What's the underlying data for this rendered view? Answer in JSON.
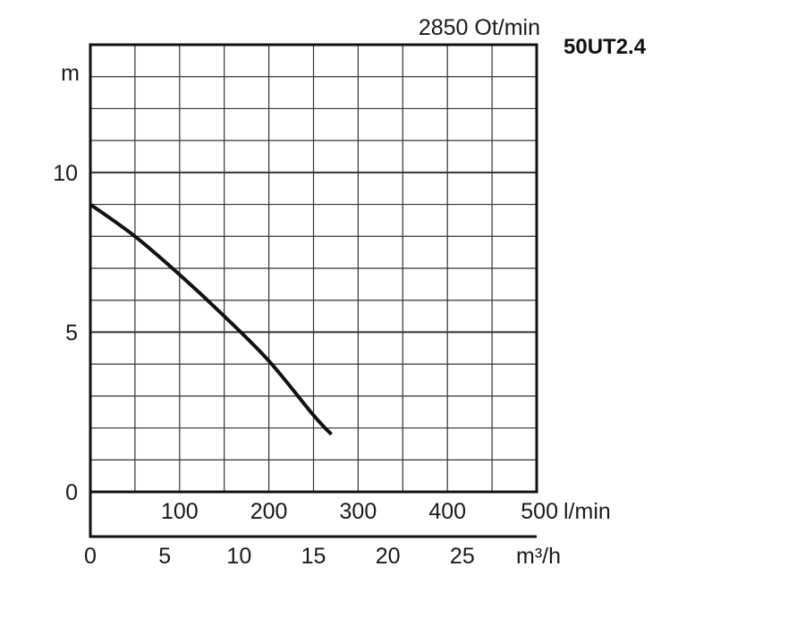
{
  "chart_data": {
    "type": "line",
    "title": "2850 Ot/min",
    "model": "50UT2.4",
    "ylabel": "m",
    "ylim": [
      0,
      14
    ],
    "y_ticks": [
      0,
      5,
      10
    ],
    "x_lpm_label": "l/min",
    "x_lpm_ticks": [
      100,
      200,
      300,
      400,
      500
    ],
    "xlim_lpm": [
      0,
      500
    ],
    "x_m3h_label": "m³/h",
    "x_m3h_ticks": [
      0,
      5,
      10,
      15,
      20,
      25
    ],
    "grid": true,
    "series": [
      {
        "x_lpm": [
          0,
          50,
          100,
          150,
          200,
          250,
          270
        ],
        "y_m": [
          9.0,
          8.0,
          6.8,
          5.5,
          4.1,
          2.4,
          1.8
        ]
      }
    ]
  }
}
